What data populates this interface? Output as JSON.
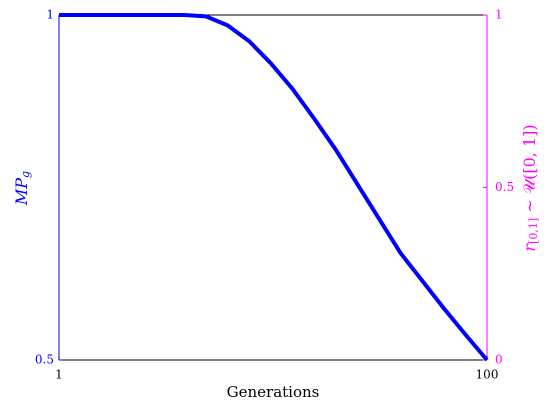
{
  "chart_data": {
    "type": "line",
    "x_label": "Generations",
    "y_label": {
      "main": "MP",
      "sub": "g"
    },
    "y2_label": {
      "main": "r",
      "sub": "[0,1]",
      "rest": " ∼ 𝒰([0, 1])"
    },
    "x": [
      1,
      10,
      20,
      30,
      35,
      40,
      45,
      50,
      55,
      60,
      65,
      70,
      75,
      80,
      85,
      90,
      95,
      100
    ],
    "series": [
      {
        "color": "#0000ff",
        "values": [
          1,
          1,
          1,
          1,
          0.998,
          0.985,
          0.962,
          0.93,
          0.893,
          0.85,
          0.805,
          0.755,
          0.705,
          0.655,
          0.615,
          0.575,
          0.537,
          0.5
        ]
      }
    ],
    "xlim": [
      1,
      100
    ],
    "xticks": [
      1,
      100
    ],
    "ylim": [
      0.5,
      1
    ],
    "yticks": [
      0.5,
      1
    ],
    "y_color": "#0000ff",
    "y2lim": [
      0,
      1
    ],
    "y2ticks": [
      0,
      0.5,
      1
    ],
    "y2_color": "#ff00ff"
  }
}
